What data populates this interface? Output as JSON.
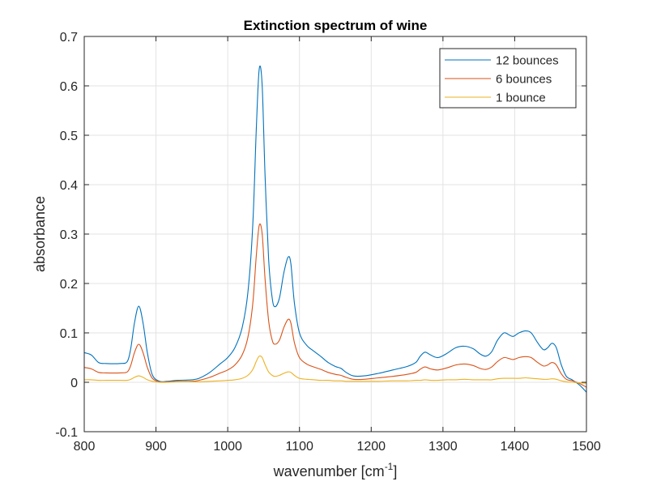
{
  "chart_data": {
    "type": "line",
    "title": "Extinction spectrum of wine",
    "xlabel": "wavenumber [cm",
    "xlabel_sup": "-1",
    "xlabel_end": "]",
    "ylabel": "absorbance",
    "xlim": [
      800,
      1500
    ],
    "ylim": [
      -0.1,
      0.7
    ],
    "xticks": [
      800,
      900,
      1000,
      1100,
      1200,
      1300,
      1400,
      1500
    ],
    "yticks": [
      -0.1,
      0,
      0.1,
      0.2,
      0.3,
      0.4,
      0.5,
      0.6,
      0.7
    ],
    "ytick_labels": [
      "-0.1",
      "0",
      "0.1",
      "0.2",
      "0.3",
      "0.4",
      "0.5",
      "0.6",
      "0.7"
    ],
    "grid": true,
    "legend_position": "top-right",
    "x": [
      800,
      810,
      820,
      830,
      850,
      860,
      865,
      870,
      876,
      882,
      888,
      895,
      905,
      915,
      930,
      950,
      960,
      975,
      990,
      1000,
      1010,
      1020,
      1028,
      1035,
      1040,
      1044,
      1048,
      1052,
      1057,
      1062,
      1066,
      1072,
      1078,
      1084,
      1088,
      1093,
      1100,
      1110,
      1120,
      1130,
      1140,
      1150,
      1158,
      1165,
      1175,
      1190,
      1210,
      1230,
      1250,
      1262,
      1268,
      1275,
      1283,
      1293,
      1305,
      1318,
      1330,
      1342,
      1352,
      1360,
      1368,
      1376,
      1385,
      1392,
      1398,
      1406,
      1415,
      1423,
      1432,
      1440,
      1446,
      1452,
      1458,
      1465,
      1472,
      1480,
      1490,
      1500
    ],
    "series": [
      {
        "name": "12 bounces",
        "color": "#0072BD",
        "values": [
          0.06,
          0.055,
          0.04,
          0.038,
          0.038,
          0.042,
          0.07,
          0.12,
          0.154,
          0.12,
          0.06,
          0.015,
          0.002,
          0.002,
          0.004,
          0.005,
          0.008,
          0.02,
          0.038,
          0.05,
          0.07,
          0.11,
          0.18,
          0.32,
          0.52,
          0.635,
          0.6,
          0.42,
          0.25,
          0.17,
          0.153,
          0.17,
          0.22,
          0.253,
          0.24,
          0.16,
          0.1,
          0.075,
          0.063,
          0.052,
          0.04,
          0.032,
          0.028,
          0.02,
          0.013,
          0.013,
          0.018,
          0.025,
          0.032,
          0.04,
          0.052,
          0.061,
          0.055,
          0.05,
          0.058,
          0.07,
          0.073,
          0.068,
          0.057,
          0.053,
          0.062,
          0.085,
          0.1,
          0.096,
          0.093,
          0.1,
          0.104,
          0.1,
          0.08,
          0.066,
          0.07,
          0.079,
          0.07,
          0.035,
          0.012,
          0.005,
          -0.005,
          -0.02
        ]
      },
      {
        "name": "6 bounces",
        "color": "#D95319",
        "values": [
          0.03,
          0.027,
          0.02,
          0.019,
          0.019,
          0.021,
          0.035,
          0.06,
          0.077,
          0.06,
          0.03,
          0.008,
          0.001,
          0.001,
          0.002,
          0.002,
          0.004,
          0.01,
          0.019,
          0.025,
          0.035,
          0.055,
          0.09,
          0.16,
          0.26,
          0.318,
          0.3,
          0.21,
          0.125,
          0.085,
          0.077,
          0.085,
          0.11,
          0.127,
          0.12,
          0.08,
          0.05,
          0.037,
          0.031,
          0.026,
          0.02,
          0.016,
          0.014,
          0.01,
          0.006,
          0.006,
          0.009,
          0.012,
          0.016,
          0.02,
          0.026,
          0.031,
          0.027,
          0.025,
          0.029,
          0.035,
          0.037,
          0.034,
          0.028,
          0.026,
          0.031,
          0.042,
          0.05,
          0.048,
          0.046,
          0.05,
          0.052,
          0.05,
          0.04,
          0.033,
          0.035,
          0.04,
          0.035,
          0.017,
          0.006,
          0.003,
          -0.002,
          -0.01
        ]
      },
      {
        "name": "1 bounce",
        "color": "#EDB120",
        "values": [
          0.005,
          0.005,
          0.004,
          0.004,
          0.004,
          0.004,
          0.006,
          0.01,
          0.013,
          0.01,
          0.005,
          0.002,
          0.0,
          0.0,
          0.001,
          0.001,
          0.001,
          0.002,
          0.003,
          0.004,
          0.005,
          0.008,
          0.014,
          0.026,
          0.043,
          0.053,
          0.05,
          0.036,
          0.021,
          0.014,
          0.012,
          0.014,
          0.018,
          0.021,
          0.02,
          0.014,
          0.008,
          0.006,
          0.005,
          0.004,
          0.004,
          0.003,
          0.003,
          0.002,
          0.002,
          0.002,
          0.002,
          0.003,
          0.003,
          0.004,
          0.004,
          0.005,
          0.004,
          0.004,
          0.005,
          0.005,
          0.006,
          0.005,
          0.005,
          0.005,
          0.005,
          0.007,
          0.008,
          0.008,
          0.008,
          0.008,
          0.009,
          0.008,
          0.007,
          0.006,
          0.006,
          0.007,
          0.006,
          0.003,
          0.001,
          0.0,
          -0.001,
          -0.002
        ]
      }
    ]
  }
}
